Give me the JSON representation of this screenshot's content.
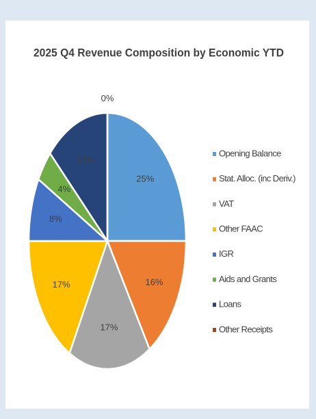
{
  "chart_data": {
    "type": "pie",
    "title": "2025 Q4 Revenue Composition by Economic YTD",
    "categories": [
      "Opening Balance",
      "Stat. Alloc. (inc Deriv.)",
      "VAT",
      "Other FAAC",
      "IGR",
      "Aids and Grants",
      "Loans",
      "Other Receipts"
    ],
    "values": [
      25,
      16,
      17,
      17,
      8,
      4,
      13,
      0
    ],
    "value_labels": [
      "25%",
      "16%",
      "17%",
      "17%",
      "8%",
      "4%",
      "13%",
      "0%"
    ],
    "colors": [
      "#5b9bd5",
      "#ed7d31",
      "#a5a5a5",
      "#ffc000",
      "#4472c4",
      "#70ad47",
      "#264478",
      "#9e480e"
    ],
    "legend": "right"
  }
}
